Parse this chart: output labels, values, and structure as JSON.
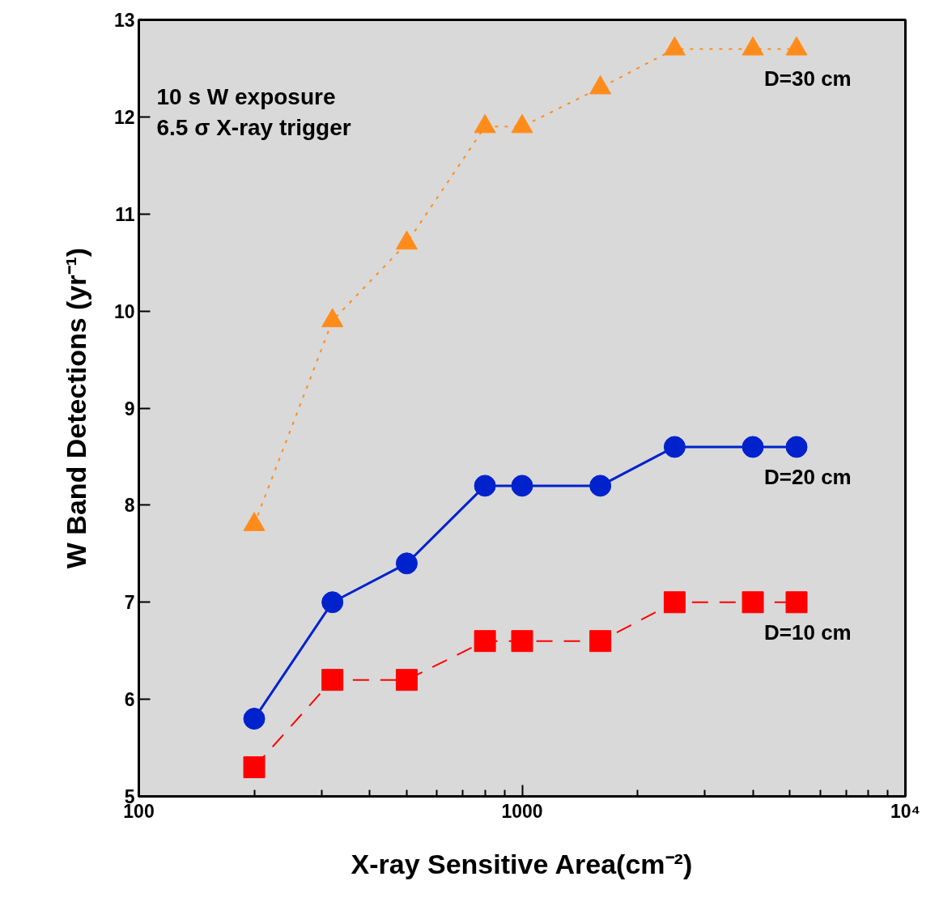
{
  "chart_data": {
    "type": "line",
    "xlabel": "X-ray Sensitive Area(cm⁻²)",
    "ylabel": "W Band Detections (yr⁻¹)",
    "annotations": [
      "10 s W exposure",
      "6.5 σ X-ray trigger"
    ],
    "x": [
      200,
      320,
      500,
      800,
      1000,
      1600,
      2500,
      4000,
      5200
    ],
    "series": [
      {
        "name": "D=30 cm",
        "color": "#ff8c1a",
        "marker": "triangle",
        "line_style": "dotted",
        "values": [
          7.8,
          9.9,
          10.7,
          11.9,
          11.9,
          12.3,
          12.7,
          12.7,
          12.7
        ]
      },
      {
        "name": "D=20 cm",
        "color": "#0022cc",
        "marker": "circle",
        "line_style": "solid",
        "values": [
          5.8,
          7.0,
          7.4,
          8.2,
          8.2,
          8.2,
          8.6,
          8.6,
          8.6
        ]
      },
      {
        "name": "D=10 cm",
        "color": "#ff0000",
        "marker": "square",
        "line_style": "dashed",
        "values": [
          5.3,
          6.2,
          6.2,
          6.6,
          6.6,
          6.6,
          7.0,
          7.0,
          7.0
        ]
      }
    ],
    "log": "x",
    "xlim": [
      100,
      10000
    ],
    "xticks": [
      100,
      {
        "value": 200,
        "label": null
      },
      {
        "value": 300,
        "label": null
      },
      {
        "value": 400,
        "label": null
      },
      {
        "value": 500,
        "label": null
      },
      {
        "value": 600,
        "label": null
      },
      {
        "value": 700,
        "label": null
      },
      {
        "value": 800,
        "label": null
      },
      {
        "value": 900,
        "label": null
      },
      1000,
      {
        "value": 2000,
        "label": null
      },
      {
        "value": 3000,
        "label": null
      },
      {
        "value": 4000,
        "label": null
      },
      {
        "value": 5000,
        "label": null
      },
      {
        "value": 6000,
        "label": null
      },
      {
        "value": 7000,
        "label": null
      },
      {
        "value": 8000,
        "label": null
      },
      {
        "value": 9000,
        "label": null
      },
      {
        "value": 10000,
        "label": "10⁴"
      }
    ],
    "ylim": [
      5,
      13
    ],
    "yticks": [
      5,
      6,
      7,
      8,
      9,
      10,
      11,
      12,
      13
    ],
    "grid": false
  }
}
